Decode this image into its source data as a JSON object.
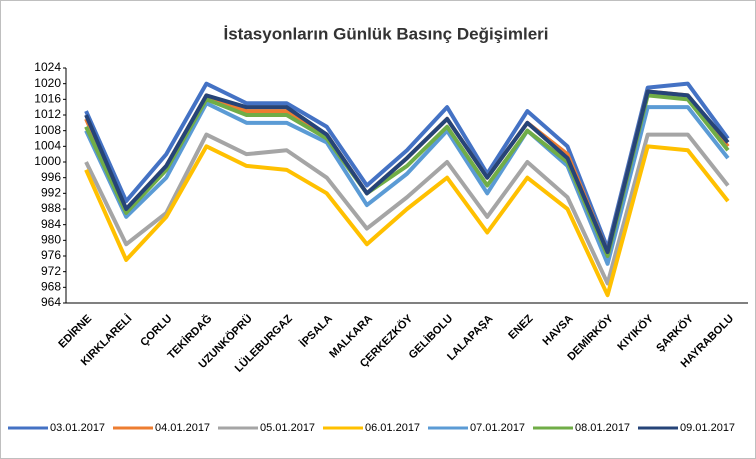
{
  "chart_data": {
    "type": "line",
    "title": "İstasyonların  Günlük  Basınç  Değişimleri",
    "categories": [
      "EDİRNE",
      "KIRKLARELİ",
      "ÇORLU",
      "TEKİRDAĞ",
      "UZUNKÖPRÜ",
      "LÜLEBURGAZ",
      "İPSALA",
      "MALKARA",
      "ÇERKEZKÖY",
      "GELİBOLU",
      "LALAPAŞA",
      "ENEZ",
      "HAVSA",
      "DEMİRKÖY",
      "KIYIKÖY",
      "ŞARKÖY",
      "HAYRABOLU"
    ],
    "series": [
      {
        "name": "03.01.2017",
        "color": "#4472c4",
        "values": [
          1013,
          990,
          1002,
          1020,
          1015,
          1015,
          1009,
          994,
          1003,
          1014,
          997,
          1013,
          1004,
          978,
          1019,
          1020,
          1006
        ]
      },
      {
        "name": "04.01.2017",
        "color": "#ed7d31",
        "values": [
          1011,
          988,
          999,
          1017,
          1013,
          1013,
          1007,
          992,
          1001,
          1011,
          996,
          1010,
          1002,
          977,
          1018,
          1017,
          1004
        ]
      },
      {
        "name": "05.01.2017",
        "color": "#a5a5a5",
        "values": [
          1000,
          979,
          987,
          1007,
          1002,
          1003,
          996,
          983,
          991,
          1000,
          986,
          1000,
          991,
          969,
          1007,
          1007,
          994
        ]
      },
      {
        "name": "06.01.2017",
        "color": "#ffc000",
        "values": [
          998,
          975,
          986,
          1004,
          999,
          998,
          992,
          979,
          988,
          996,
          982,
          996,
          988,
          966,
          1004,
          1003,
          990
        ]
      },
      {
        "name": "07.01.2017",
        "color": "#5b9bd5",
        "values": [
          1008,
          986,
          996,
          1015,
          1010,
          1010,
          1005,
          989,
          997,
          1008,
          992,
          1008,
          999,
          974,
          1014,
          1014,
          1001
        ]
      },
      {
        "name": "08.01.2017",
        "color": "#70ad47",
        "values": [
          1009,
          987,
          998,
          1016,
          1012,
          1012,
          1006,
          992,
          999,
          1009,
          994,
          1008,
          1000,
          976,
          1017,
          1016,
          1003
        ]
      },
      {
        "name": "09.01.2017",
        "color": "#264478",
        "values": [
          1012,
          988,
          999,
          1017,
          1014,
          1014,
          1007,
          992,
          1001,
          1011,
          996,
          1010,
          1001,
          977,
          1018,
          1017,
          1005
        ]
      }
    ],
    "ylim": [
      964,
      1024
    ],
    "yticks": [
      964,
      968,
      972,
      976,
      980,
      984,
      988,
      992,
      996,
      1000,
      1004,
      1008,
      1012,
      1016,
      1020,
      1024
    ],
    "legend": "bottom"
  }
}
